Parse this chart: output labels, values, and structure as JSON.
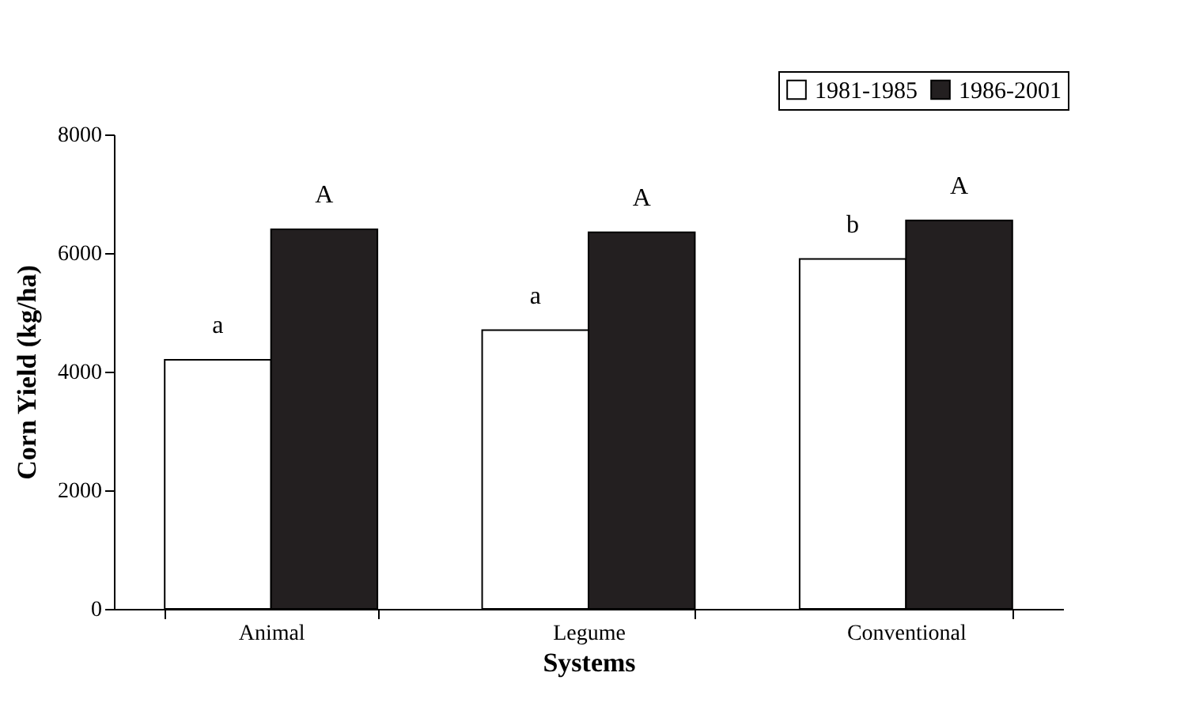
{
  "chart_data": {
    "type": "bar",
    "xlabel": "Systems",
    "ylabel": "Corn Yield (kg/ha)",
    "categories": [
      "Animal",
      "Legume",
      "Conventional"
    ],
    "series": [
      {
        "name": "1981-1985",
        "color": "#ffffff",
        "values": [
          4200,
          4700,
          5900
        ]
      },
      {
        "name": "1986-2001",
        "color": "#231f20",
        "values": [
          6400,
          6350,
          6550
        ]
      }
    ],
    "ylim": [
      0,
      8000
    ],
    "yticks": [
      0,
      2000,
      4000,
      6000,
      8000
    ],
    "grid": false,
    "legend": "top right",
    "annotations": [
      {
        "text": "a",
        "x": "Animal",
        "y": 4200
      },
      {
        "text": "A",
        "x": "Animal",
        "y": 6400
      },
      {
        "text": "a",
        "x": "Legume",
        "y": 4700
      },
      {
        "text": "A",
        "x": "Legume",
        "y": 6350
      },
      {
        "text": "b",
        "x": "Conventional",
        "y": 5900
      },
      {
        "text": "A",
        "x": "Conventional",
        "y": 6550
      }
    ]
  }
}
